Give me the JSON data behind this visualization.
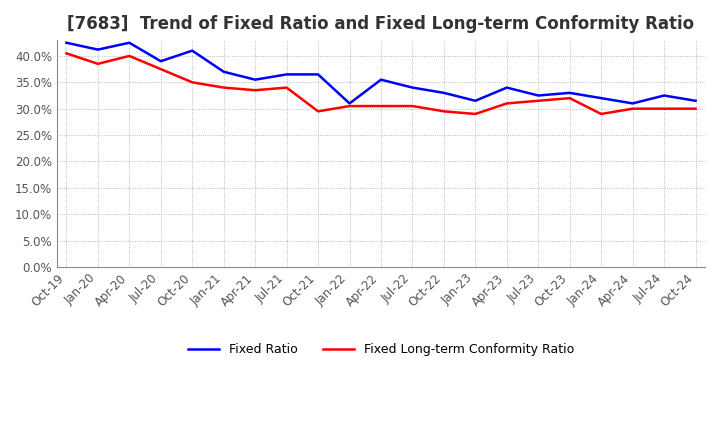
{
  "title": "[7683]  Trend of Fixed Ratio and Fixed Long-term Conformity Ratio",
  "x_labels": [
    "Oct-19",
    "Jan-20",
    "Apr-20",
    "Jul-20",
    "Oct-20",
    "Jan-21",
    "Apr-21",
    "Jul-21",
    "Oct-21",
    "Jan-22",
    "Apr-22",
    "Jul-22",
    "Oct-22",
    "Jan-23",
    "Apr-23",
    "Jul-23",
    "Oct-23",
    "Jan-24",
    "Apr-24",
    "Jul-24",
    "Oct-24"
  ],
  "fixed_ratio": [
    42.5,
    41.2,
    42.5,
    39.0,
    41.0,
    37.0,
    35.5,
    36.5,
    36.5,
    31.0,
    35.5,
    34.0,
    33.0,
    31.5,
    34.0,
    32.5,
    33.0,
    32.0,
    31.0,
    32.5,
    31.5
  ],
  "fixed_lt_ratio": [
    40.5,
    38.5,
    40.0,
    37.5,
    35.0,
    34.0,
    33.5,
    34.0,
    29.5,
    30.5,
    30.5,
    30.5,
    29.5,
    29.0,
    31.0,
    31.5,
    32.0,
    29.0,
    30.0,
    30.0,
    30.0
  ],
  "ylim": [
    0.0,
    43.0
  ],
  "yticks": [
    0.0,
    5.0,
    10.0,
    15.0,
    20.0,
    25.0,
    30.0,
    35.0,
    40.0
  ],
  "fixed_ratio_color": "#0000ff",
  "fixed_lt_ratio_color": "#ff0000",
  "background_color": "#ffffff",
  "grid_color": "#aaaaaa",
  "title_fontsize": 12,
  "legend_fontsize": 9,
  "tick_fontsize": 8.5
}
